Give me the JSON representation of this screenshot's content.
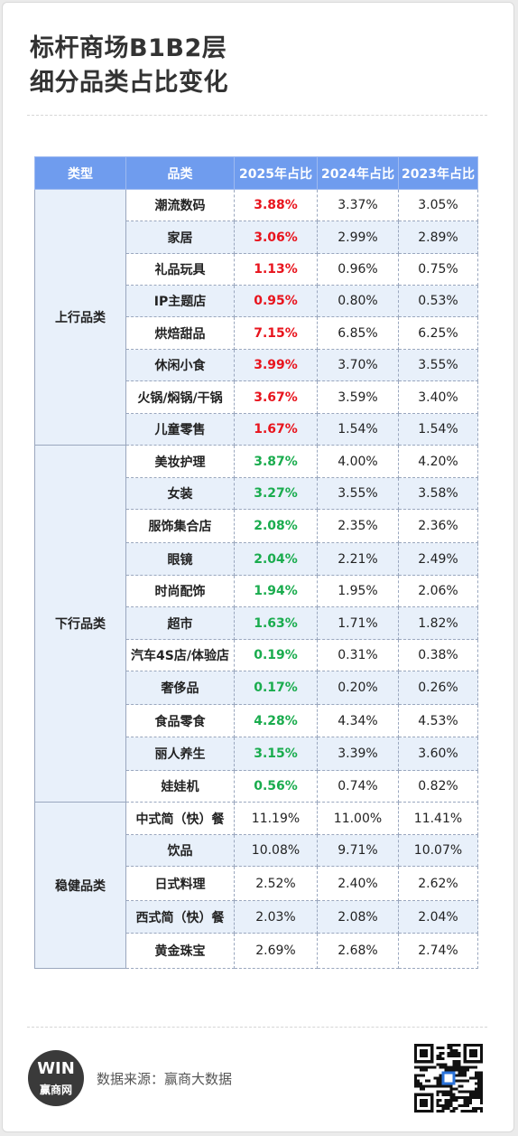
{
  "title_lines": [
    "标杆商场B1B2层",
    "细分品类占比变化"
  ],
  "table": {
    "headers": [
      "类型",
      "品类",
      "2025年占比",
      "2024年占比",
      "2023年占比"
    ],
    "groups": [
      {
        "type": "上行品类",
        "trend": "up",
        "rows": [
          [
            "潮流数码",
            "3.88%",
            "3.37%",
            "3.05%"
          ],
          [
            "家居",
            "3.06%",
            "2.99%",
            "2.89%"
          ],
          [
            "礼品玩具",
            "1.13%",
            "0.96%",
            "0.75%"
          ],
          [
            "IP主题店",
            "0.95%",
            "0.80%",
            "0.53%"
          ],
          [
            "烘焙甜品",
            "7.15%",
            "6.85%",
            "6.25%"
          ],
          [
            "休闲小食",
            "3.99%",
            "3.70%",
            "3.55%"
          ],
          [
            "火锅/焖锅/干锅",
            "3.67%",
            "3.59%",
            "3.40%"
          ],
          [
            "儿童零售",
            "1.67%",
            "1.54%",
            "1.54%"
          ]
        ]
      },
      {
        "type": "下行品类",
        "trend": "down",
        "rows": [
          [
            "美妆护理",
            "3.87%",
            "4.00%",
            "4.20%"
          ],
          [
            "女装",
            "3.27%",
            "3.55%",
            "3.58%"
          ],
          [
            "服饰集合店",
            "2.08%",
            "2.35%",
            "2.36%"
          ],
          [
            "眼镜",
            "2.04%",
            "2.21%",
            "2.49%"
          ],
          [
            "时尚配饰",
            "1.94%",
            "1.95%",
            "2.06%"
          ],
          [
            "超市",
            "1.63%",
            "1.71%",
            "1.82%"
          ],
          [
            "汽车4S店/体验店",
            "0.19%",
            "0.31%",
            "0.38%"
          ],
          [
            "奢侈品",
            "0.17%",
            "0.20%",
            "0.26%"
          ],
          [
            "食品零食",
            "4.28%",
            "4.34%",
            "4.53%"
          ],
          [
            "丽人养生",
            "3.15%",
            "3.39%",
            "3.60%"
          ],
          [
            "娃娃机",
            "0.56%",
            "0.74%",
            "0.82%"
          ]
        ]
      },
      {
        "type": "稳健品类",
        "trend": "stable",
        "rows": [
          [
            "中式简（快）餐",
            "11.19%",
            "11.00%",
            "11.41%"
          ],
          [
            "饮品",
            "10.08%",
            "9.71%",
            "10.07%"
          ],
          [
            "日式料理",
            "2.52%",
            "2.40%",
            "2.62%"
          ],
          [
            "西式简（快）餐",
            "2.03%",
            "2.08%",
            "2.04%"
          ],
          [
            "黄金珠宝",
            "2.69%",
            "2.68%",
            "2.74%"
          ]
        ]
      }
    ]
  },
  "footer": {
    "logo_text": "赢商网",
    "logo_mark": "WIN",
    "source": "数据来源：赢商大数据",
    "qr_icon": "qr-code-icon"
  },
  "colors": {
    "header_bg": "#6f9cee",
    "row_alt_bg": "#e8f0fa",
    "up": "#e8141d",
    "down": "#1aac4e"
  }
}
